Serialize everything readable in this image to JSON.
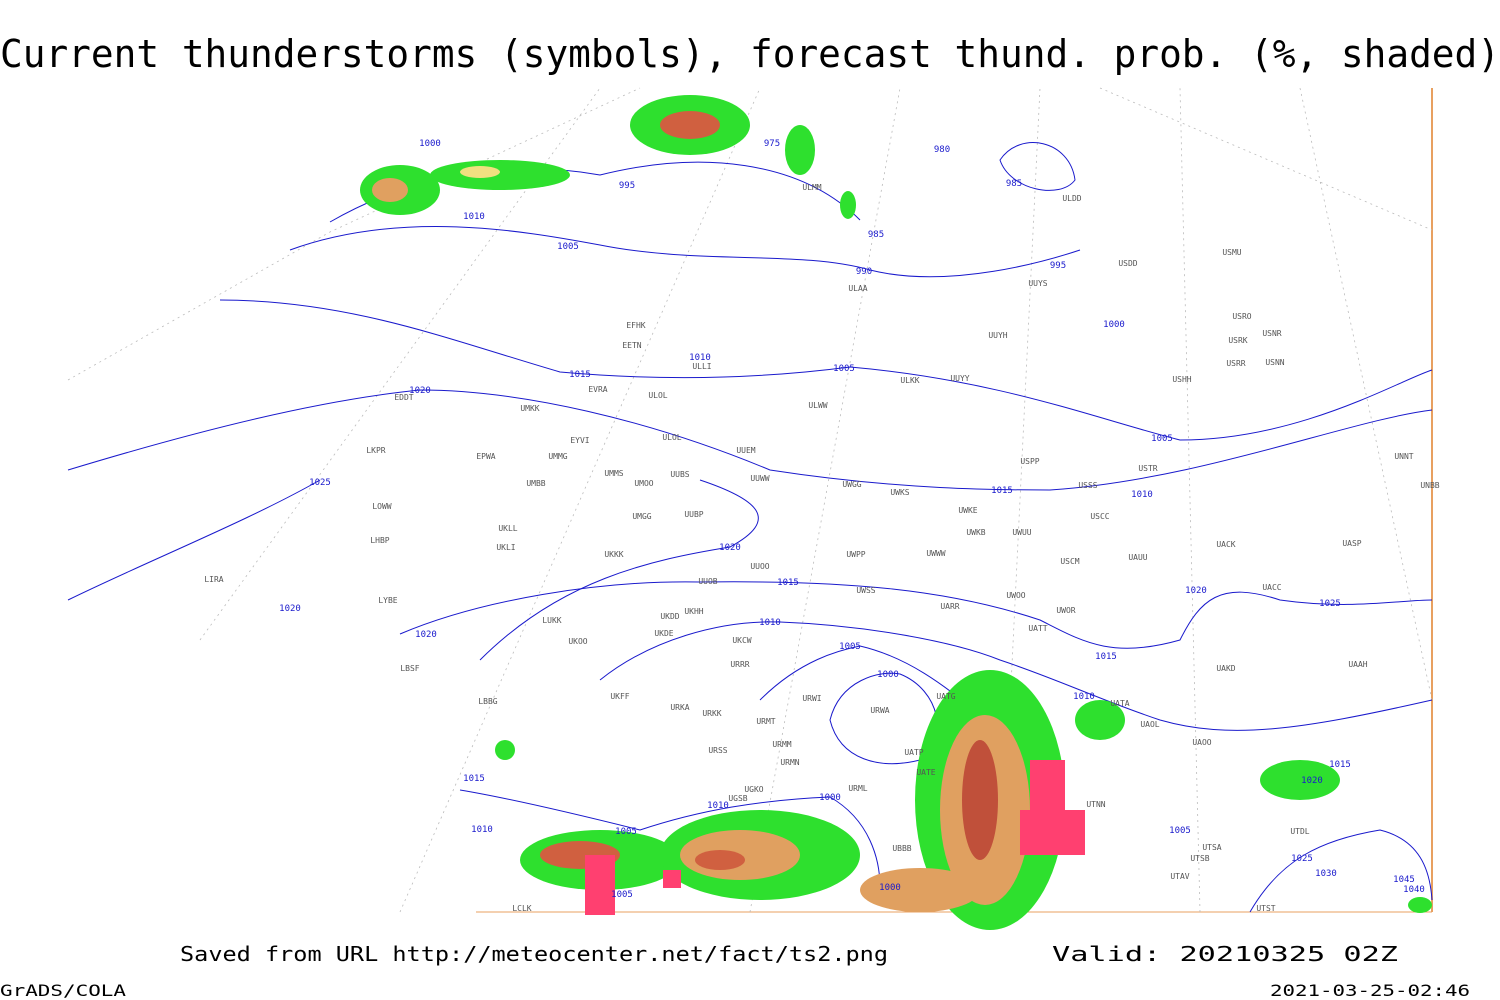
{
  "title": "Current thunderstorms (symbols), forecast thund. prob. (%, shaded)",
  "footer": {
    "saved": "Saved from URL http://meteocenter.net/fact/ts2.png",
    "valid": "Valid: 20210325 02Z",
    "credit": "GrADS/COLA",
    "timestamp": "2021-03-25-02:46"
  },
  "isobar_labels": [
    "1000",
    "975",
    "980",
    "985",
    "995",
    "1010",
    "985",
    "1005",
    "990",
    "995",
    "1000",
    "1010",
    "1005",
    "1015",
    "1020",
    "1005",
    "1010",
    "1015",
    "1025",
    "1020",
    "1015",
    "1020",
    "1025",
    "1020",
    "1020",
    "1010",
    "1005",
    "1015",
    "1000",
    "1010",
    "1015",
    "1010",
    "1000",
    "1010",
    "1005",
    "1005",
    "1005",
    "1000",
    "1015",
    "1020",
    "1025",
    "1030",
    "1045",
    "1040"
  ],
  "stations": [
    "ULDD",
    "USMU",
    "USDD",
    "UUYS",
    "ULAA",
    "ULMM",
    "USRO",
    "USRK",
    "USNR",
    "USRR",
    "USNN",
    "UUYH",
    "USHH",
    "ULKK",
    "UUYY",
    "EFHK",
    "EETN",
    "ULLI",
    "EVRA",
    "ULOL",
    "ULWW",
    "UMKK",
    "EDDT",
    "EYVI",
    "ULOL",
    "UUEM",
    "LKPR",
    "EPWA",
    "UMMG",
    "UMMS",
    "UMOO",
    "UUBS",
    "UUWW",
    "UWGG",
    "UWKS",
    "UMBB",
    "USPP",
    "USTR",
    "USSS",
    "UNNT",
    "UNBB",
    "LOWW",
    "UKLL",
    "UMGG",
    "UUBP",
    "UWKE",
    "UWKB",
    "UWUU",
    "USCC",
    "UACK",
    "UASP",
    "LHBP",
    "UKLI",
    "UKKK",
    "UUOO",
    "UWPP",
    "UWWW",
    "USCM",
    "UAUU",
    "LIRA",
    "LYBE",
    "UUOB",
    "UWSS",
    "UWOO",
    "UWOR",
    "UACC",
    "UKDD",
    "UKHH",
    "LUKK",
    "UARR",
    "UKOO",
    "UKDE",
    "UKCW",
    "UATT",
    "LBSF",
    "URRR",
    "UAKD",
    "UAAH",
    "UKFF",
    "URWI",
    "UATG",
    "LBBG",
    "URKA",
    "URKK",
    "URWA",
    "UATA",
    "URMT",
    "UAOL",
    "UATP",
    "UAOO",
    "URSS",
    "URMM",
    "URMN",
    "UATE",
    "UGKO",
    "URML",
    "UGSB",
    "UTNN",
    "UTDL",
    "UBBB",
    "UTSA",
    "UTSB",
    "UTAV",
    "UTST",
    "LCLK"
  ]
}
